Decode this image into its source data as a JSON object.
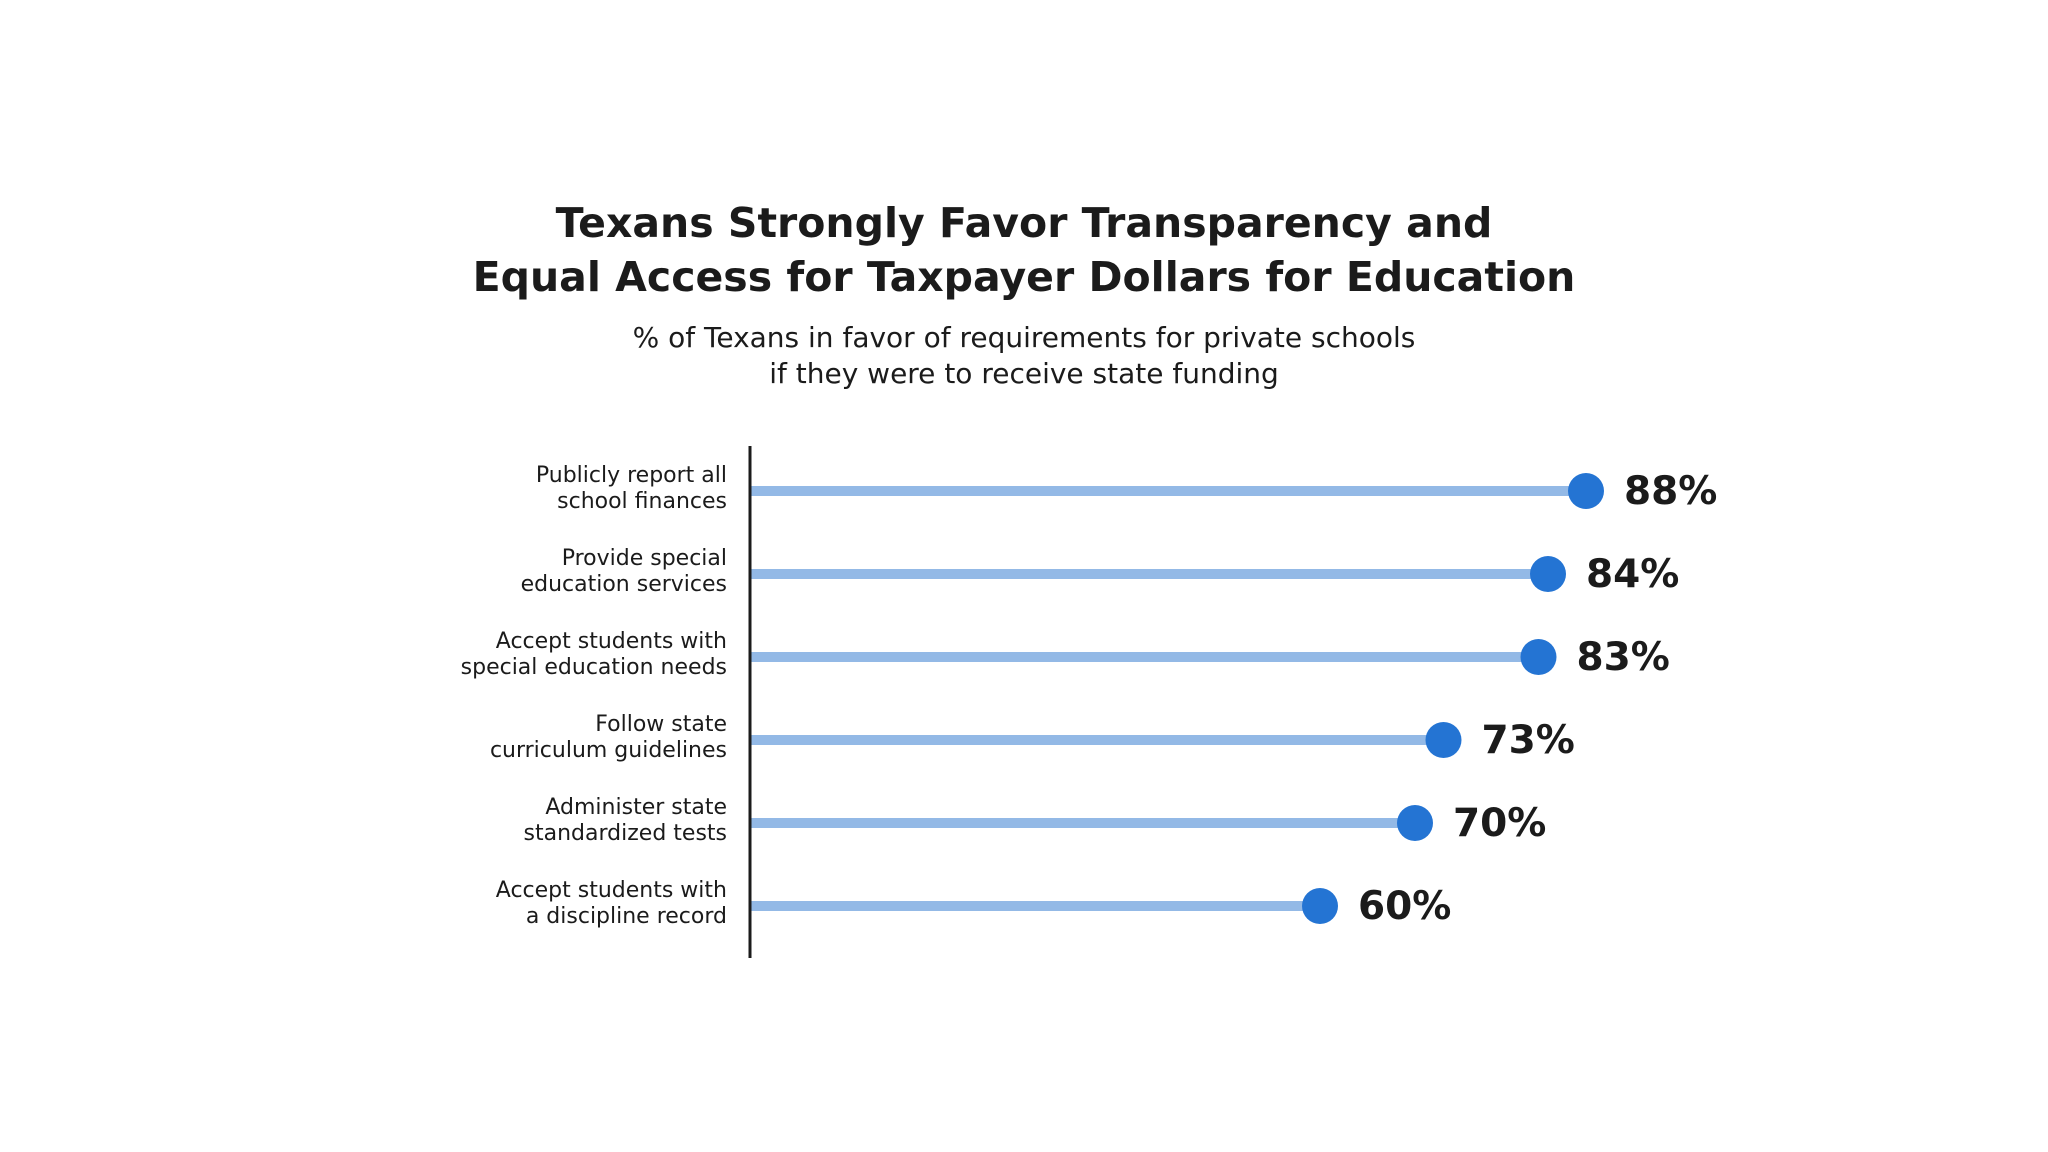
{
  "title": {
    "line1": "Texans Strongly Favor Transparency and",
    "line2": "Equal Access for Taxpayer Dollars for Education"
  },
  "subtitle": {
    "line1": "% of Texans in favor of requirements for private schools",
    "line2": "if they were to receive state funding"
  },
  "colors": {
    "line": "#93b9e6",
    "dot": "#2474d3",
    "text": "#1b1b1b",
    "axis": "#1b1b1b"
  },
  "chart_data": {
    "type": "bar",
    "orientation": "horizontal",
    "style": "lollipop",
    "categories": [
      [
        "Publicly report all",
        "school finances"
      ],
      [
        "Provide special",
        "education services"
      ],
      [
        "Accept students with",
        "special education needs"
      ],
      [
        "Follow state",
        "curriculum guidelines"
      ],
      [
        "Administer state",
        "standardized tests"
      ],
      [
        "Accept students with",
        "a discipline record"
      ]
    ],
    "values": [
      88,
      84,
      83,
      73,
      70,
      60
    ],
    "value_labels": [
      "88%",
      "84%",
      "83%",
      "73%",
      "70%",
      "60%"
    ],
    "xlim": [
      0,
      100
    ],
    "grid": false,
    "legend": "none"
  }
}
